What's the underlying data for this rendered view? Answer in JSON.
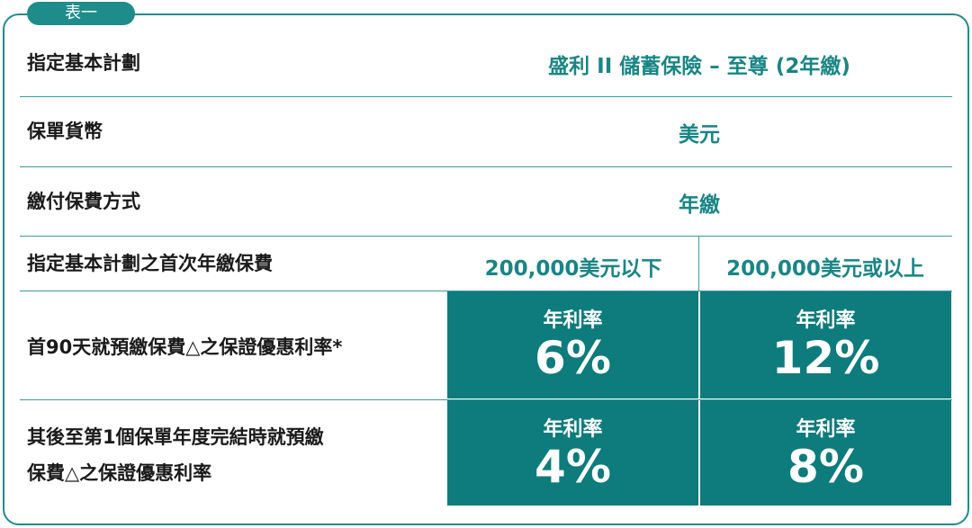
{
  "tab": "表一",
  "table": {
    "rows": [
      {
        "label": "指定基本計劃",
        "value": "盛利 II 儲蓄保險 – 至尊 (2年繳)"
      },
      {
        "label": "保單貨幣",
        "value": "美元"
      },
      {
        "label": "繳付保費方式",
        "value": "年繳"
      },
      {
        "label": "指定基本計劃之首次年繳保費",
        "values": [
          "200,000美元以下",
          "200,000美元或以上"
        ]
      },
      {
        "label": [
          "首90天就預繳保費△之保證優惠利率*"
        ],
        "cells": [
          {
            "caption": "年利率",
            "rate": "6%"
          },
          {
            "caption": "年利率",
            "rate": "12%"
          }
        ]
      },
      {
        "label": [
          "其後至第1個保單年度完結時就預繳",
          "保費△之保證優惠利率"
        ],
        "cells": [
          {
            "caption": "年利率",
            "rate": "4%"
          },
          {
            "caption": "年利率",
            "rate": "8%"
          }
        ]
      }
    ]
  }
}
